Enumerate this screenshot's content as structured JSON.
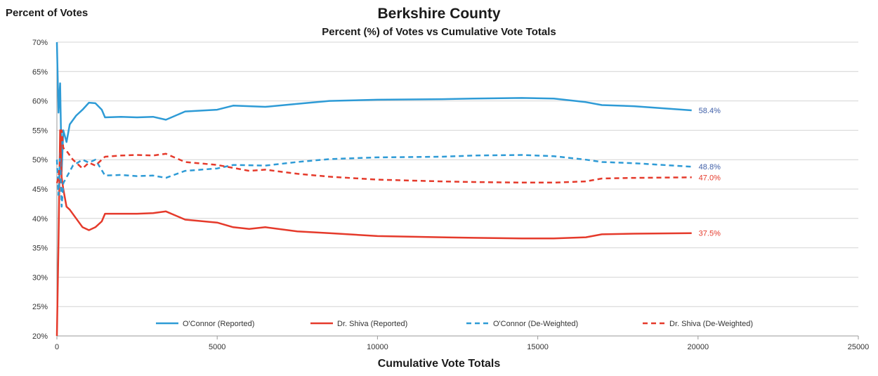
{
  "chart_data": {
    "type": "line",
    "title": "Berkshire County",
    "subtitle": "Percent (%) of Votes vs Cumulative Vote Totals",
    "xlabel": "Cumulative Vote Totals",
    "ylabel": "Percent of Votes",
    "xlim": [
      0,
      25000
    ],
    "ylim": [
      20,
      70
    ],
    "x_ticks": [
      "0",
      "5000",
      "10000",
      "15000",
      "20000",
      "25000"
    ],
    "y_ticks": [
      "20%",
      "25%",
      "30%",
      "35%",
      "40%",
      "45%",
      "50%",
      "55%",
      "60%",
      "65%",
      "70%"
    ],
    "grid": "horizontal",
    "legend_position": "bottom-inside",
    "series": [
      {
        "name": "O'Connor (Reported)",
        "color": "#2E9BD6",
        "dash": "solid",
        "end_label": "58.4%",
        "end_label_color": "#3F5FA8",
        "points": [
          [
            0,
            70
          ],
          [
            50,
            58
          ],
          [
            100,
            63
          ],
          [
            150,
            48
          ],
          [
            200,
            55
          ],
          [
            300,
            53
          ],
          [
            400,
            56
          ],
          [
            600,
            57.5
          ],
          [
            800,
            58.5
          ],
          [
            1000,
            59.7
          ],
          [
            1200,
            59.6
          ],
          [
            1400,
            58.5
          ],
          [
            1500,
            57.2
          ],
          [
            2000,
            57.3
          ],
          [
            2500,
            57.2
          ],
          [
            3000,
            57.3
          ],
          [
            3400,
            56.8
          ],
          [
            4000,
            58.2
          ],
          [
            5000,
            58.5
          ],
          [
            5500,
            59.2
          ],
          [
            6500,
            59.0
          ],
          [
            7500,
            59.5
          ],
          [
            8500,
            60.0
          ],
          [
            10000,
            60.2
          ],
          [
            12000,
            60.3
          ],
          [
            13000,
            60.4
          ],
          [
            14500,
            60.5
          ],
          [
            15500,
            60.4
          ],
          [
            16500,
            59.8
          ],
          [
            17000,
            59.3
          ],
          [
            18000,
            59.1
          ],
          [
            19800,
            58.4
          ]
        ]
      },
      {
        "name": "Dr. Shiva (Reported)",
        "color": "#E53A2B",
        "dash": "solid",
        "end_label": "37.5%",
        "end_label_color": "#E53A2B",
        "points": [
          [
            0,
            20
          ],
          [
            50,
            36
          ],
          [
            100,
            55
          ],
          [
            150,
            47
          ],
          [
            200,
            45
          ],
          [
            300,
            42
          ],
          [
            400,
            41.5
          ],
          [
            600,
            40
          ],
          [
            800,
            38.5
          ],
          [
            1000,
            38
          ],
          [
            1200,
            38.5
          ],
          [
            1400,
            39.5
          ],
          [
            1500,
            40.8
          ],
          [
            2000,
            40.8
          ],
          [
            2500,
            40.8
          ],
          [
            3000,
            40.9
          ],
          [
            3400,
            41.2
          ],
          [
            4000,
            39.8
          ],
          [
            5000,
            39.3
          ],
          [
            5500,
            38.5
          ],
          [
            6000,
            38.2
          ],
          [
            6500,
            38.5
          ],
          [
            7500,
            37.8
          ],
          [
            8500,
            37.5
          ],
          [
            10000,
            37.0
          ],
          [
            12000,
            36.8
          ],
          [
            13000,
            36.7
          ],
          [
            14500,
            36.6
          ],
          [
            15500,
            36.6
          ],
          [
            16500,
            36.8
          ],
          [
            17000,
            37.3
          ],
          [
            18000,
            37.4
          ],
          [
            19800,
            37.5
          ]
        ]
      },
      {
        "name": "O'Connor (De-Weighted)",
        "color": "#2E9BD6",
        "dash": "dashed",
        "end_label": "48.8%",
        "end_label_color": "#3F5FA8",
        "points": [
          [
            0,
            50
          ],
          [
            50,
            44
          ],
          [
            100,
            51
          ],
          [
            150,
            42
          ],
          [
            200,
            46
          ],
          [
            300,
            47
          ],
          [
            500,
            49
          ],
          [
            800,
            50
          ],
          [
            1000,
            49.5
          ],
          [
            1200,
            50
          ],
          [
            1500,
            47.3
          ],
          [
            2000,
            47.4
          ],
          [
            2500,
            47.2
          ],
          [
            3000,
            47.3
          ],
          [
            3400,
            46.9
          ],
          [
            4000,
            48.1
          ],
          [
            5000,
            48.5
          ],
          [
            5500,
            49.1
          ],
          [
            6500,
            49.0
          ],
          [
            7500,
            49.6
          ],
          [
            8500,
            50.1
          ],
          [
            10000,
            50.4
          ],
          [
            12000,
            50.5
          ],
          [
            13000,
            50.7
          ],
          [
            14500,
            50.8
          ],
          [
            15500,
            50.6
          ],
          [
            16500,
            50.0
          ],
          [
            17000,
            49.6
          ],
          [
            18000,
            49.4
          ],
          [
            19800,
            48.8
          ]
        ]
      },
      {
        "name": "Dr. Shiva (De-Weighted)",
        "color": "#E53A2B",
        "dash": "dashed",
        "end_label": "47.0%",
        "end_label_color": "#E53A2B",
        "points": [
          [
            0,
            46
          ],
          [
            50,
            47
          ],
          [
            100,
            50
          ],
          [
            150,
            55
          ],
          [
            200,
            52
          ],
          [
            300,
            51.5
          ],
          [
            500,
            50
          ],
          [
            800,
            48.5
          ],
          [
            1000,
            49.5
          ],
          [
            1200,
            49
          ],
          [
            1500,
            50.5
          ],
          [
            2000,
            50.7
          ],
          [
            2500,
            50.8
          ],
          [
            3000,
            50.7
          ],
          [
            3400,
            51.0
          ],
          [
            4000,
            49.6
          ],
          [
            5000,
            49.1
          ],
          [
            5500,
            48.6
          ],
          [
            6000,
            48.1
          ],
          [
            6500,
            48.3
          ],
          [
            7500,
            47.6
          ],
          [
            8500,
            47.1
          ],
          [
            10000,
            46.6
          ],
          [
            12000,
            46.3
          ],
          [
            13000,
            46.2
          ],
          [
            14500,
            46.1
          ],
          [
            15500,
            46.1
          ],
          [
            16500,
            46.3
          ],
          [
            17000,
            46.8
          ],
          [
            18000,
            46.9
          ],
          [
            19800,
            47.0
          ]
        ]
      }
    ]
  }
}
